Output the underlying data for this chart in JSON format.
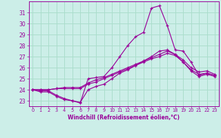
{
  "background_color": "#cceee8",
  "line_color": "#990099",
  "grid_color": "#aaddcc",
  "xlabel": "Windchill (Refroidissement éolien,°C)",
  "xlim": [
    -0.5,
    23.5
  ],
  "ylim": [
    22.5,
    32.0
  ],
  "yticks": [
    23,
    24,
    25,
    26,
    27,
    28,
    29,
    30,
    31
  ],
  "xticks": [
    0,
    1,
    2,
    3,
    4,
    5,
    6,
    7,
    8,
    9,
    10,
    11,
    12,
    13,
    14,
    15,
    16,
    17,
    18,
    19,
    20,
    21,
    22,
    23
  ],
  "series": [
    [
      24.0,
      23.8,
      23.8,
      23.4,
      23.1,
      23.0,
      22.8,
      25.0,
      25.1,
      25.2,
      26.0,
      27.0,
      28.0,
      28.8,
      29.2,
      31.4,
      31.6,
      29.8,
      27.6,
      27.5,
      26.5,
      25.3,
      25.5,
      25.3
    ],
    [
      24.0,
      23.9,
      23.9,
      23.5,
      23.2,
      23.0,
      22.85,
      24.0,
      24.3,
      24.5,
      25.0,
      25.5,
      25.8,
      26.2,
      26.6,
      27.0,
      27.5,
      27.6,
      27.2,
      26.5,
      25.7,
      25.2,
      25.4,
      25.2
    ],
    [
      24.0,
      24.0,
      24.0,
      24.1,
      24.1,
      24.1,
      24.1,
      24.5,
      24.7,
      25.0,
      25.3,
      25.6,
      25.9,
      26.2,
      26.5,
      26.8,
      27.0,
      27.3,
      27.1,
      26.5,
      25.8,
      25.4,
      25.5,
      25.3
    ],
    [
      24.0,
      24.0,
      24.0,
      24.1,
      24.2,
      24.2,
      24.2,
      24.6,
      24.9,
      25.1,
      25.4,
      25.7,
      26.0,
      26.3,
      26.6,
      26.9,
      27.2,
      27.5,
      27.2,
      26.7,
      26.0,
      25.6,
      25.7,
      25.4
    ]
  ]
}
